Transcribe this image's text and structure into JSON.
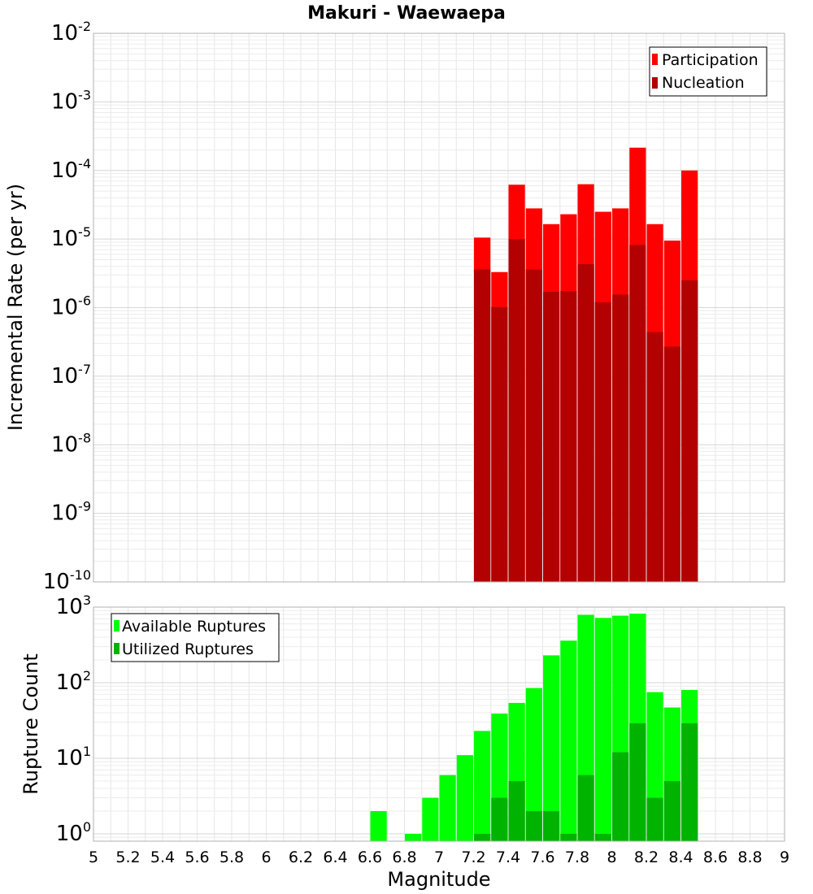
{
  "title": "Makuri - Waewaepa",
  "xlabel": "Magnitude",
  "colors": {
    "participation": "#ff0000",
    "nucleation": "#b30000",
    "available": "#00ff00",
    "utilized": "#00b300"
  },
  "chart_data": [
    {
      "type": "bar",
      "title": "Makuri - Waewaepa",
      "xlabel": "",
      "ylabel": "Incremental Rate (per yr)",
      "yscale": "log",
      "ylim": [
        1e-10,
        0.01
      ],
      "xlim": [
        5,
        9
      ],
      "grid": true,
      "legend_position": "top-right",
      "y_tick_labels": [
        {
          "base": "10",
          "exp": "-10"
        },
        {
          "base": "10",
          "exp": "-9"
        },
        {
          "base": "10",
          "exp": "-8"
        },
        {
          "base": "10",
          "exp": "-7"
        },
        {
          "base": "10",
          "exp": "-6"
        },
        {
          "base": "10",
          "exp": "-5"
        },
        {
          "base": "10",
          "exp": "-4"
        },
        {
          "base": "10",
          "exp": "-3"
        },
        {
          "base": "10",
          "exp": "-2"
        }
      ],
      "x": [
        7.25,
        7.35,
        7.45,
        7.55,
        7.65,
        7.75,
        7.85,
        7.95,
        8.05,
        8.15,
        8.25,
        8.35,
        8.45
      ],
      "series": [
        {
          "name": "Participation",
          "values": [
            1.05e-05,
            3.3e-06,
            6.2e-05,
            2.8e-05,
            1.65e-05,
            2.3e-05,
            6.3e-05,
            2.5e-05,
            2.8e-05,
            0.000215,
            1.65e-05,
            9.5e-06,
            0.0001
          ]
        },
        {
          "name": "Nucleation",
          "values": [
            3.6e-06,
            1.02e-06,
            1e-05,
            3.6e-06,
            1.7e-06,
            1.75e-06,
            4.3e-06,
            1.2e-06,
            1.55e-06,
            8.2e-06,
            4.4e-07,
            2.7e-07,
            2.5e-06
          ]
        }
      ]
    },
    {
      "type": "bar",
      "xlabel": "Magnitude",
      "ylabel": "Rupture Count",
      "yscale": "log",
      "ylim": [
        0.8,
        1000
      ],
      "xlim": [
        5,
        9
      ],
      "grid": true,
      "legend_position": "top-left",
      "y_tick_labels": [
        {
          "base": "10",
          "exp": "0"
        },
        {
          "base": "10",
          "exp": "1"
        },
        {
          "base": "10",
          "exp": "2"
        },
        {
          "base": "10",
          "exp": "3"
        }
      ],
      "x_tick_labels": [
        "5",
        "5.2",
        "5.4",
        "5.6",
        "5.8",
        "6",
        "6.2",
        "6.4",
        "6.6",
        "6.8",
        "7",
        "7.2",
        "7.4",
        "7.6",
        "7.8",
        "8",
        "8.2",
        "8.4",
        "8.6",
        "8.8",
        "9"
      ],
      "x": [
        6.65,
        6.85,
        6.95,
        7.05,
        7.15,
        7.25,
        7.35,
        7.45,
        7.55,
        7.65,
        7.75,
        7.85,
        7.95,
        8.05,
        8.15,
        8.25,
        8.35,
        8.45
      ],
      "series": [
        {
          "name": "Available Ruptures",
          "values": [
            2,
            1,
            3,
            6,
            11,
            23,
            39,
            54,
            85,
            230,
            360,
            790,
            720,
            770,
            820,
            75,
            47,
            80
          ]
        },
        {
          "name": "Utilized Ruptures",
          "values": [
            0,
            0,
            0,
            0,
            0,
            1,
            3,
            5,
            2,
            2,
            1,
            6,
            1,
            12,
            29,
            3,
            5,
            29
          ]
        }
      ]
    }
  ]
}
